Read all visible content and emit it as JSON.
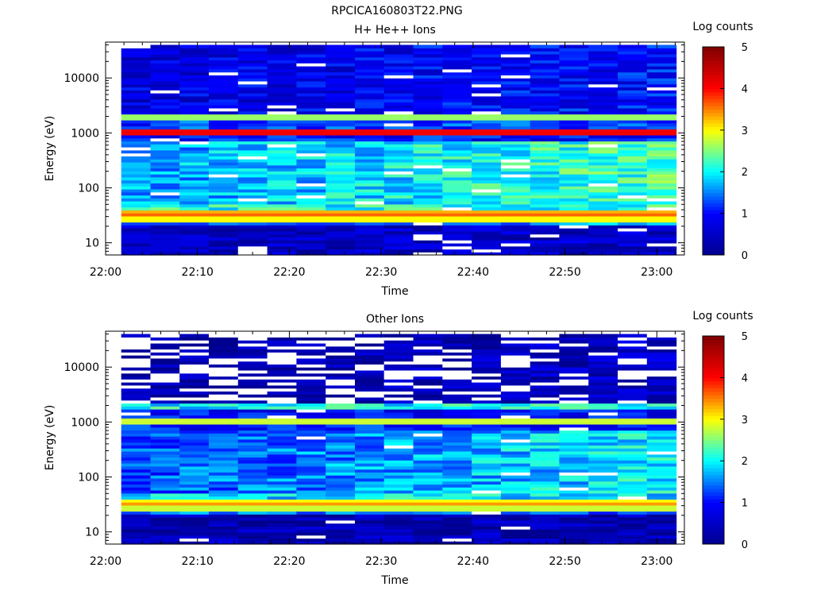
{
  "file_title": "RPCICA160803T22.PNG",
  "colorscale": {
    "name": "jet",
    "stops": [
      "#00008f",
      "#0000ff",
      "#00ffff",
      "#ffff00",
      "#ff0000",
      "#800000"
    ]
  },
  "chart_data": [
    {
      "type": "heatmap",
      "title": "H+ He++ Ions",
      "xlabel": "Time",
      "ylabel": "Energy (eV)",
      "x_ticks": [
        "22:00",
        "22:10",
        "22:20",
        "22:30",
        "22:40",
        "22:50",
        "23:00"
      ],
      "x_range_minutes": [
        0,
        63
      ],
      "y_scale": "log",
      "y_ticks": [
        "10",
        "100",
        "1000",
        "10000"
      ],
      "ylim": [
        6,
        45000
      ],
      "colorbar": {
        "label": "Log counts",
        "range": [
          0,
          5
        ],
        "ticks": [
          "0",
          "1",
          "2",
          "3",
          "4",
          "5"
        ]
      },
      "time_bins": 19,
      "bands": [
        {
          "energy_range_eV": [
            6,
            20
          ],
          "log_counts": 0.5
        },
        {
          "energy_range_eV": [
            20,
            25
          ],
          "log_counts": 1.6
        },
        {
          "energy_range_eV": [
            25,
            30
          ],
          "log_counts": 3.0
        },
        {
          "energy_range_eV": [
            30,
            36
          ],
          "log_counts": 3.6
        },
        {
          "energy_range_eV": [
            36,
            42
          ],
          "log_counts": 3.3
        },
        {
          "energy_range_eV": [
            42,
            50
          ],
          "log_counts": 2.1
        },
        {
          "energy_range_eV": [
            50,
            700
          ],
          "log_counts": 1.6
        },
        {
          "energy_range_eV": [
            900,
            1150
          ],
          "log_counts": 4.1
        },
        {
          "energy_range_eV": [
            1150,
            1800
          ],
          "log_counts": 1.2
        },
        {
          "energy_range_eV": [
            1800,
            2200
          ],
          "log_counts": 2.6
        },
        {
          "energy_range_eV": [
            2200,
            45000
          ],
          "log_counts": 0.7
        }
      ]
    },
    {
      "type": "heatmap",
      "title": "Other Ions",
      "xlabel": "Time",
      "ylabel": "Energy (eV)",
      "x_ticks": [
        "22:00",
        "22:10",
        "22:20",
        "22:30",
        "22:40",
        "22:50",
        "23:00"
      ],
      "x_range_minutes": [
        0,
        63
      ],
      "y_scale": "log",
      "y_ticks": [
        "10",
        "100",
        "1000",
        "10000"
      ],
      "ylim": [
        6,
        45000
      ],
      "colorbar": {
        "label": "Log counts",
        "range": [
          0,
          5
        ],
        "ticks": [
          "0",
          "1",
          "2",
          "3",
          "4",
          "5"
        ]
      },
      "time_bins": 19,
      "bands": [
        {
          "energy_range_eV": [
            6,
            20
          ],
          "log_counts": 0.3
        },
        {
          "energy_range_eV": [
            20,
            25
          ],
          "log_counts": 1.5
        },
        {
          "energy_range_eV": [
            25,
            30
          ],
          "log_counts": 2.8
        },
        {
          "energy_range_eV": [
            30,
            36
          ],
          "log_counts": 3.4
        },
        {
          "energy_range_eV": [
            36,
            42
          ],
          "log_counts": 3.0
        },
        {
          "energy_range_eV": [
            42,
            50
          ],
          "log_counts": 1.9
        },
        {
          "energy_range_eV": [
            50,
            700
          ],
          "log_counts": 1.3
        },
        {
          "energy_range_eV": [
            900,
            1150
          ],
          "log_counts": 2.8
        },
        {
          "energy_range_eV": [
            1150,
            1800
          ],
          "log_counts": 0.9
        },
        {
          "energy_range_eV": [
            1800,
            2200
          ],
          "log_counts": 2.0
        },
        {
          "energy_range_eV": [
            2200,
            45000
          ],
          "log_counts": 0.4
        }
      ]
    }
  ]
}
